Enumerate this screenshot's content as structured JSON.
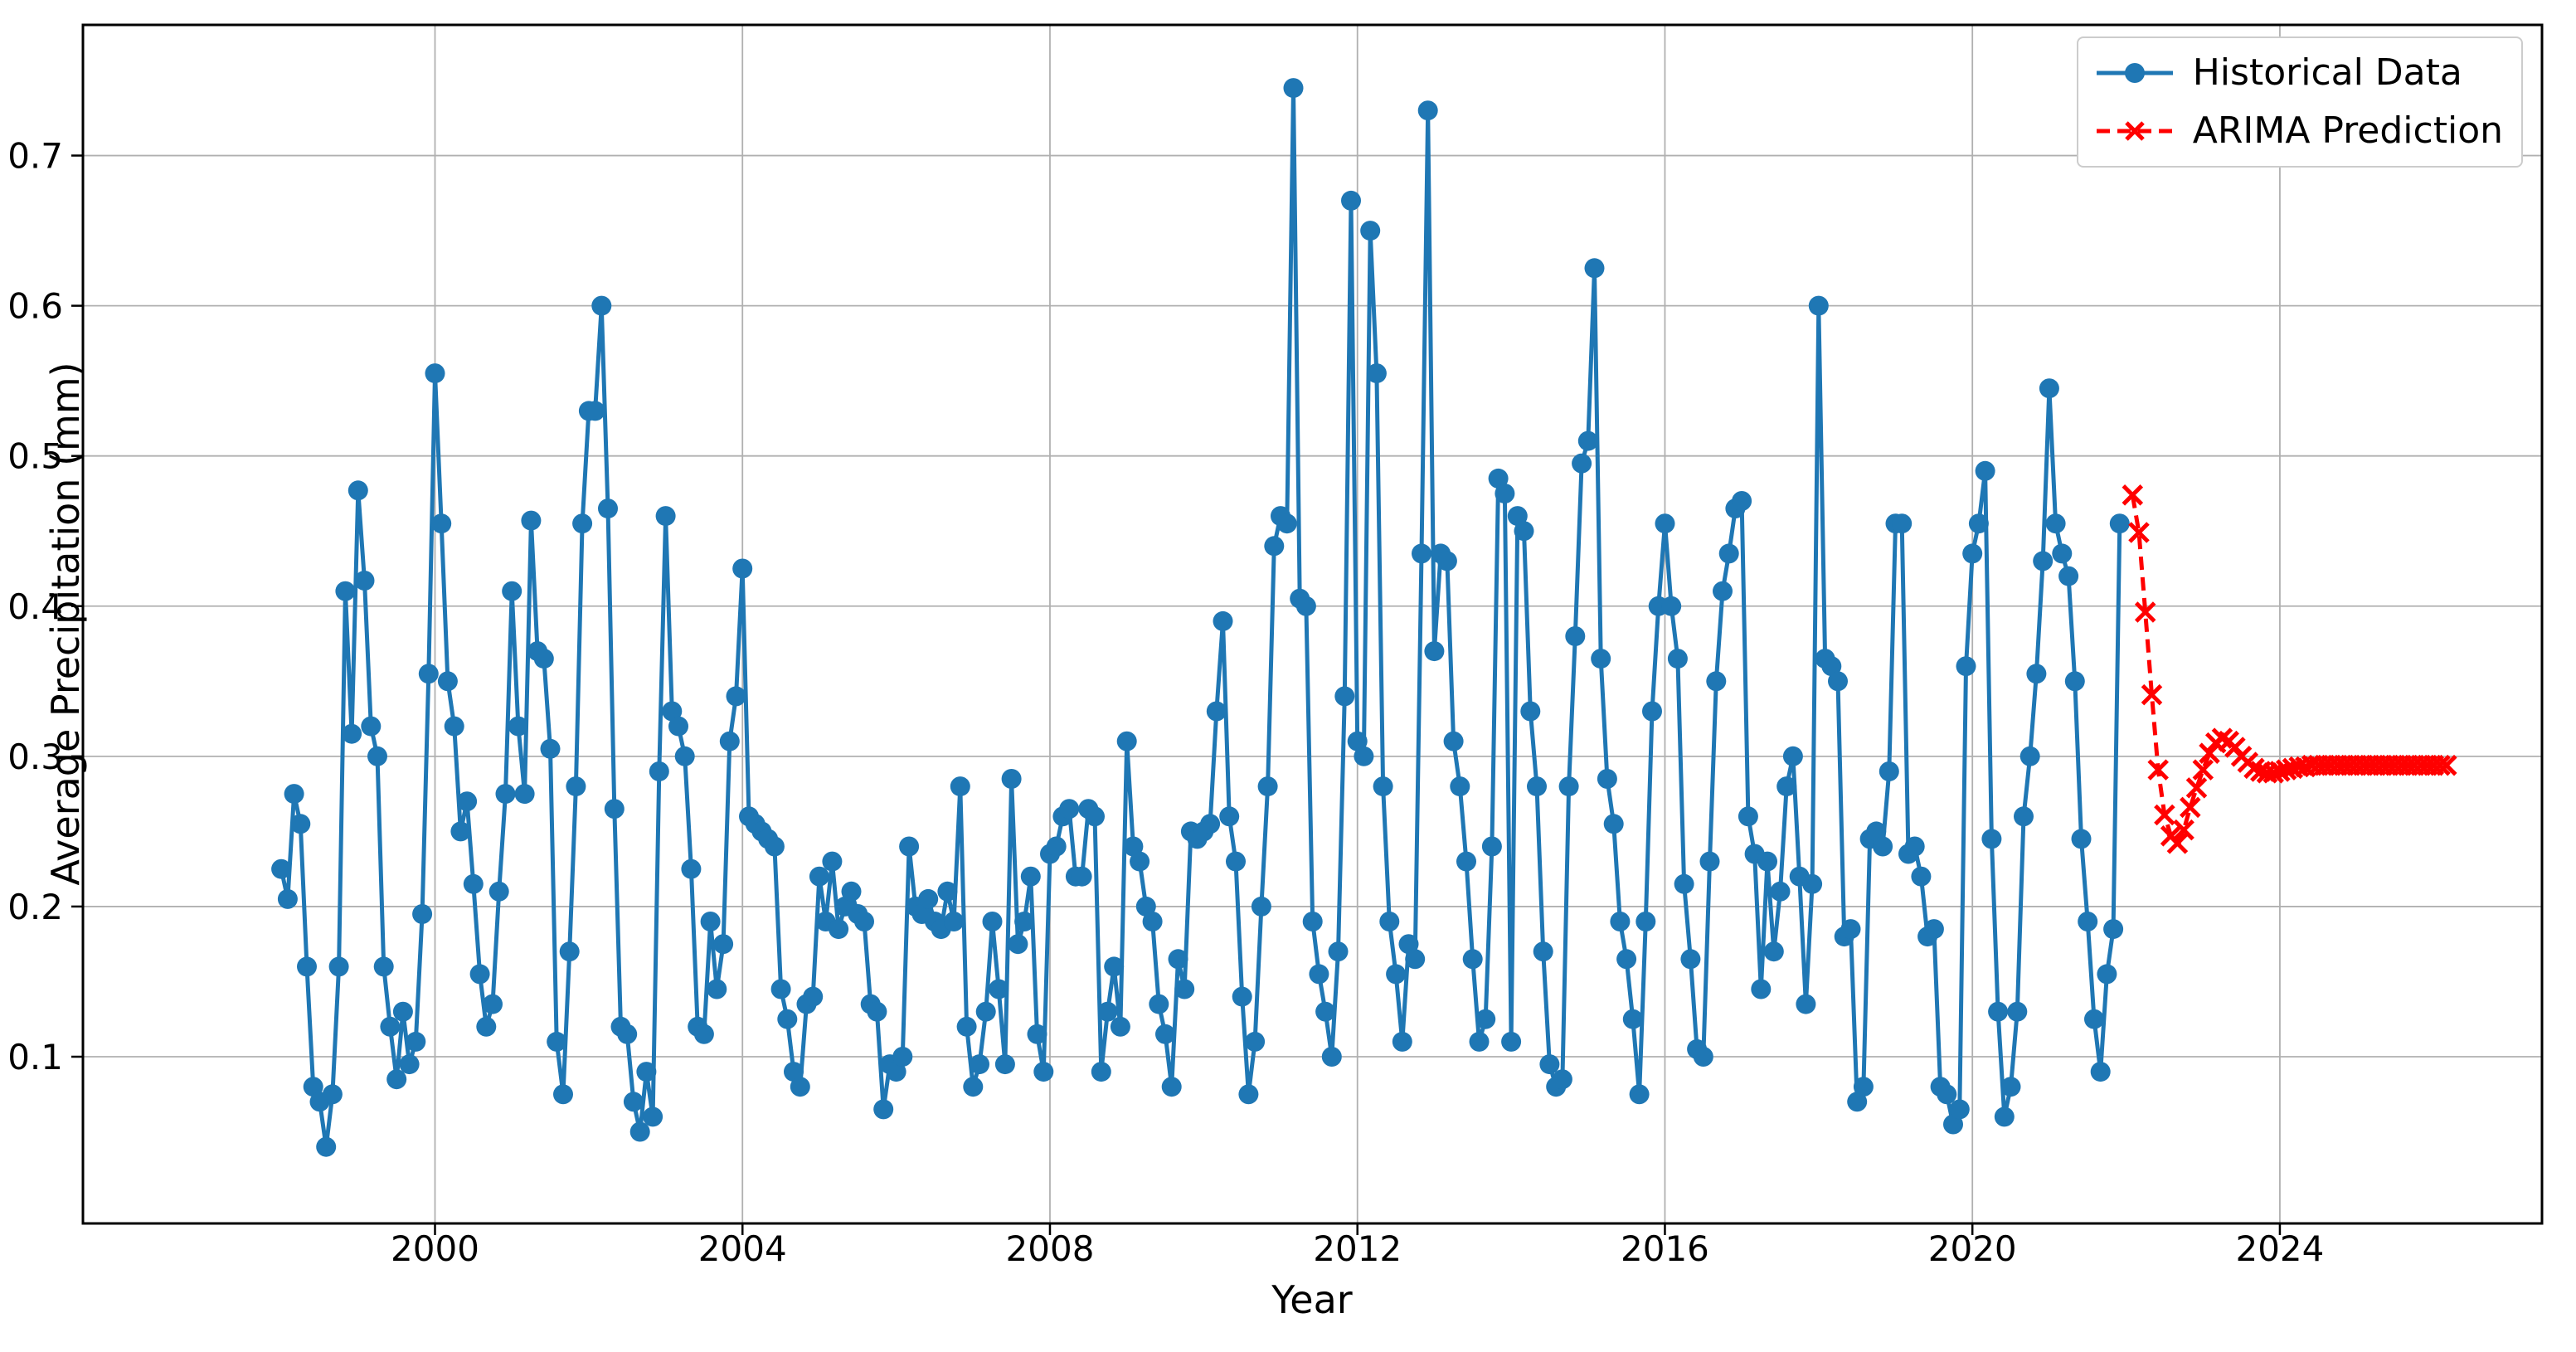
{
  "chart_data": {
    "type": "line",
    "title": "",
    "xlabel": "Year",
    "ylabel": "Average Precipitation (mm)",
    "xlim": [
      1995.42,
      2027.41
    ],
    "ylim": [
      -0.011,
      0.787
    ],
    "x_ticks": [
      2000,
      2004,
      2008,
      2012,
      2016,
      2020,
      2024
    ],
    "y_ticks": [
      0.1,
      0.2,
      0.3,
      0.4,
      0.5,
      0.6,
      0.7
    ],
    "grid": true,
    "grid_color": "#b0b0b0",
    "legend_position": "upper right",
    "series": [
      {
        "name": "Historical Data",
        "color": "#1f77b4",
        "line_style": "solid",
        "marker": "circle",
        "start_year": 1998.0,
        "interval_years": 0.0833333,
        "values": [
          0.225,
          0.205,
          0.275,
          0.255,
          0.16,
          0.08,
          0.07,
          0.04,
          0.075,
          0.16,
          0.41,
          0.315,
          0.477,
          0.417,
          0.32,
          0.3,
          0.16,
          0.12,
          0.085,
          0.13,
          0.095,
          0.11,
          0.195,
          0.355,
          0.555,
          0.455,
          0.35,
          0.32,
          0.25,
          0.27,
          0.215,
          0.155,
          0.12,
          0.135,
          0.21,
          0.275,
          0.41,
          0.32,
          0.275,
          0.457,
          0.37,
          0.365,
          0.305,
          0.11,
          0.075,
          0.17,
          0.28,
          0.455,
          0.53,
          0.53,
          0.6,
          0.465,
          0.265,
          0.12,
          0.115,
          0.07,
          0.05,
          0.09,
          0.06,
          0.29,
          0.46,
          0.33,
          0.32,
          0.3,
          0.225,
          0.12,
          0.115,
          0.19,
          0.145,
          0.175,
          0.31,
          0.34,
          0.425,
          0.26,
          0.255,
          0.25,
          0.245,
          0.24,
          0.145,
          0.125,
          0.09,
          0.08,
          0.135,
          0.14,
          0.22,
          0.19,
          0.23,
          0.185,
          0.2,
          0.21,
          0.195,
          0.19,
          0.135,
          0.13,
          0.065,
          0.095,
          0.09,
          0.1,
          0.24,
          0.2,
          0.195,
          0.205,
          0.19,
          0.185,
          0.21,
          0.19,
          0.28,
          0.12,
          0.08,
          0.095,
          0.13,
          0.19,
          0.145,
          0.095,
          0.285,
          0.175,
          0.19,
          0.22,
          0.115,
          0.09,
          0.235,
          0.24,
          0.26,
          0.265,
          0.22,
          0.22,
          0.265,
          0.26,
          0.09,
          0.13,
          0.16,
          0.12,
          0.31,
          0.24,
          0.23,
          0.2,
          0.19,
          0.135,
          0.115,
          0.08,
          0.165,
          0.145,
          0.25,
          0.245,
          0.25,
          0.255,
          0.33,
          0.39,
          0.26,
          0.23,
          0.14,
          0.075,
          0.11,
          0.2,
          0.28,
          0.44,
          0.46,
          0.455,
          0.745,
          0.405,
          0.4,
          0.19,
          0.155,
          0.13,
          0.1,
          0.17,
          0.34,
          0.67,
          0.31,
          0.3,
          0.65,
          0.555,
          0.28,
          0.19,
          0.155,
          0.11,
          0.175,
          0.165,
          0.435,
          0.73,
          0.37,
          0.435,
          0.43,
          0.31,
          0.28,
          0.23,
          0.165,
          0.11,
          0.125,
          0.24,
          0.485,
          0.475,
          0.11,
          0.46,
          0.45,
          0.33,
          0.28,
          0.17,
          0.095,
          0.08,
          0.085,
          0.28,
          0.38,
          0.495,
          0.51,
          0.625,
          0.365,
          0.285,
          0.255,
          0.19,
          0.165,
          0.125,
          0.075,
          0.19,
          0.33,
          0.4,
          0.455,
          0.4,
          0.365,
          0.215,
          0.165,
          0.105,
          0.1,
          0.23,
          0.35,
          0.41,
          0.435,
          0.465,
          0.47,
          0.26,
          0.235,
          0.145,
          0.23,
          0.17,
          0.21,
          0.28,
          0.3,
          0.22,
          0.135,
          0.215,
          0.6,
          0.365,
          0.36,
          0.35,
          0.18,
          0.185,
          0.07,
          0.08,
          0.245,
          0.25,
          0.24,
          0.29,
          0.455,
          0.455,
          0.235,
          0.24,
          0.22,
          0.18,
          0.185,
          0.08,
          0.075,
          0.055,
          0.065,
          0.36,
          0.435,
          0.455,
          0.49,
          0.245,
          0.13,
          0.06,
          0.08,
          0.13,
          0.26,
          0.3,
          0.355,
          0.43,
          0.545,
          0.455,
          0.435,
          0.42,
          0.35,
          0.245,
          0.19,
          0.125,
          0.09,
          0.155,
          0.185,
          0.455
        ]
      },
      {
        "name": "ARIMA Prediction",
        "color": "#ff0000",
        "line_style": "dashed",
        "marker": "x",
        "start_year": 2022.0833,
        "interval_years": 0.0833333,
        "values": [
          0.474,
          0.449,
          0.396,
          0.341,
          0.291,
          0.261,
          0.247,
          0.242,
          0.251,
          0.266,
          0.279,
          0.291,
          0.302,
          0.309,
          0.312,
          0.31,
          0.306,
          0.3,
          0.296,
          0.292,
          0.29,
          0.289,
          0.289,
          0.29,
          0.291,
          0.292,
          0.293,
          0.293,
          0.294,
          0.294,
          0.294,
          0.294,
          0.294,
          0.294,
          0.294,
          0.294,
          0.294,
          0.294,
          0.294,
          0.294,
          0.294,
          0.294,
          0.294,
          0.294,
          0.294,
          0.294,
          0.294,
          0.294,
          0.294,
          0.294
        ]
      }
    ]
  }
}
